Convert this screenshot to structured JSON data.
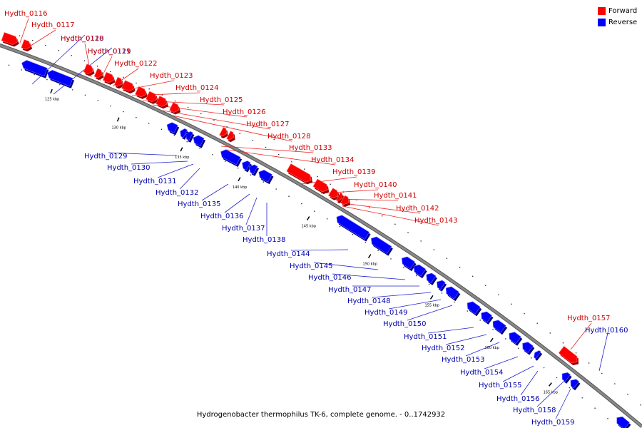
{
  "caption": "Hydrogenobacter thermophilus TK-6, complete genome. - 0..1742932",
  "legend": [
    {
      "label": "Forward",
      "color": "#ff0000"
    },
    {
      "label": "Reverse",
      "color": "#0000ff"
    }
  ],
  "colors": {
    "forward": "#ff0000",
    "reverse": "#0000ff",
    "forward_label": "#cc0000",
    "reverse_label": "#0000aa",
    "backbone": "#888888"
  },
  "scale_labels": [
    "125 kbp",
    "130 kbp",
    "135 kbp",
    "140 kbp",
    "145 kbp",
    "150 kbp",
    "155 kbp",
    "160 kbp",
    "165 kbp"
  ],
  "genes": [
    {
      "name": "Hydth_0116",
      "strand": "forward"
    },
    {
      "name": "Hydth_0117",
      "strand": "forward"
    },
    {
      "name": "Hydth_0118",
      "strand": "reverse"
    },
    {
      "name": "Hydth_0119",
      "strand": "reverse"
    },
    {
      "name": "Hydth_0120",
      "strand": "forward"
    },
    {
      "name": "Hydth_0121",
      "strand": "forward"
    },
    {
      "name": "Hydth_0122",
      "strand": "forward"
    },
    {
      "name": "Hydth_0123",
      "strand": "forward"
    },
    {
      "name": "Hydth_0124",
      "strand": "forward"
    },
    {
      "name": "Hydth_0125",
      "strand": "forward"
    },
    {
      "name": "Hydth_0126",
      "strand": "forward"
    },
    {
      "name": "Hydth_0127",
      "strand": "forward"
    },
    {
      "name": "Hydth_0128",
      "strand": "forward"
    },
    {
      "name": "Hydth_0129",
      "strand": "reverse"
    },
    {
      "name": "Hydth_0130",
      "strand": "reverse"
    },
    {
      "name": "Hydth_0131",
      "strand": "reverse"
    },
    {
      "name": "Hydth_0132",
      "strand": "reverse"
    },
    {
      "name": "Hydth_0133",
      "strand": "forward"
    },
    {
      "name": "Hydth_0134",
      "strand": "forward"
    },
    {
      "name": "Hydth_0135",
      "strand": "reverse"
    },
    {
      "name": "Hydth_0136",
      "strand": "reverse"
    },
    {
      "name": "Hydth_0137",
      "strand": "reverse"
    },
    {
      "name": "Hydth_0138",
      "strand": "reverse"
    },
    {
      "name": "Hydth_0139",
      "strand": "forward"
    },
    {
      "name": "Hydth_0140",
      "strand": "forward"
    },
    {
      "name": "Hydth_0141",
      "strand": "forward"
    },
    {
      "name": "Hydth_0142",
      "strand": "forward"
    },
    {
      "name": "Hydth_0143",
      "strand": "forward"
    },
    {
      "name": "Hydth_0144",
      "strand": "reverse"
    },
    {
      "name": "Hydth_0145",
      "strand": "reverse"
    },
    {
      "name": "Hydth_0146",
      "strand": "reverse"
    },
    {
      "name": "Hydth_0147",
      "strand": "reverse"
    },
    {
      "name": "Hydth_0148",
      "strand": "reverse"
    },
    {
      "name": "Hydth_0149",
      "strand": "reverse"
    },
    {
      "name": "Hydth_0150",
      "strand": "reverse"
    },
    {
      "name": "Hydth_0151",
      "strand": "reverse"
    },
    {
      "name": "Hydth_0152",
      "strand": "reverse"
    },
    {
      "name": "Hydth_0153",
      "strand": "reverse"
    },
    {
      "name": "Hydth_0154",
      "strand": "reverse"
    },
    {
      "name": "Hydth_0155",
      "strand": "reverse"
    },
    {
      "name": "Hydth_0156",
      "strand": "reverse"
    },
    {
      "name": "Hydth_0157",
      "strand": "forward"
    },
    {
      "name": "Hydth_0158",
      "strand": "reverse"
    },
    {
      "name": "Hydth_0159",
      "strand": "reverse"
    },
    {
      "name": "Hydth_0160",
      "strand": "reverse"
    }
  ]
}
